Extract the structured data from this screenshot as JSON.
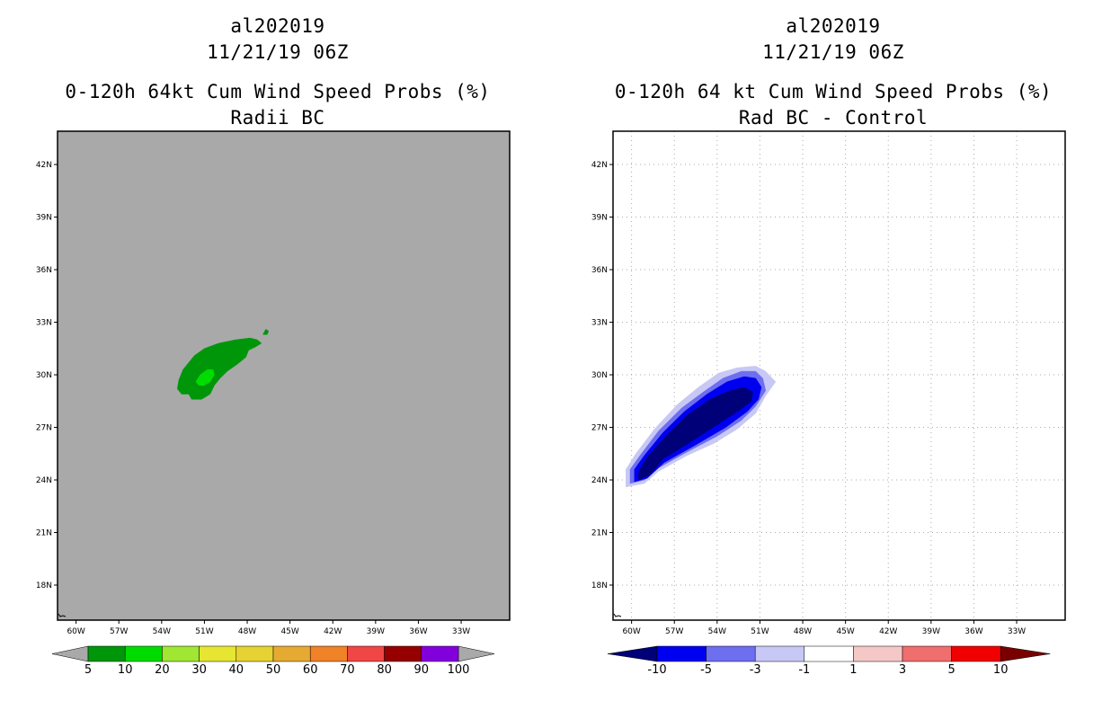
{
  "chart_data": [
    {
      "type": "heatmap",
      "storm_id": "al202019",
      "datetime": "11/21/19 06Z",
      "title": "0-120h 64kt Cum Wind Speed Probs (%)",
      "subtitle": "Radii BC",
      "background": "#a9a9a9",
      "gridlines": false,
      "x_ticks": [
        "60W",
        "57W",
        "54W",
        "51W",
        "48W",
        "45W",
        "42W",
        "39W",
        "36W",
        "33W"
      ],
      "y_ticks": [
        "42N",
        "39N",
        "36N",
        "33N",
        "30N",
        "27N",
        "24N",
        "21N",
        "18N"
      ],
      "xlim": [
        -61.3,
        -29.6
      ],
      "ylim": [
        16.0,
        43.9
      ],
      "colorbar": {
        "labels": [
          "5",
          "10",
          "20",
          "30",
          "40",
          "50",
          "60",
          "70",
          "80",
          "90",
          "100"
        ],
        "colors": [
          "#00960a",
          "#00dc00",
          "#a0e632",
          "#e6e632",
          "#e6d232",
          "#e6aa32",
          "#f08228",
          "#f04646",
          "#960000",
          "#8200dc"
        ],
        "end_colors": [
          "#a9a9a9",
          "#a9a9a9"
        ]
      },
      "contours": [
        {
          "level": "5-10",
          "color": "#00960a",
          "polygon": [
            [
              -52.9,
              29.2
            ],
            [
              -52.8,
              29.7
            ],
            [
              -52.5,
              30.3
            ],
            [
              -52.1,
              30.7
            ],
            [
              -51.7,
              31.1
            ],
            [
              -51.0,
              31.5
            ],
            [
              -50.0,
              31.8
            ],
            [
              -48.8,
              32.0
            ],
            [
              -47.8,
              32.1
            ],
            [
              -47.3,
              32.0
            ],
            [
              -47.0,
              31.8
            ],
            [
              -47.4,
              31.6
            ],
            [
              -47.9,
              31.4
            ],
            [
              -48.1,
              31.0
            ],
            [
              -48.7,
              30.6
            ],
            [
              -49.4,
              30.2
            ],
            [
              -49.9,
              29.8
            ],
            [
              -50.3,
              29.4
            ],
            [
              -50.6,
              28.9
            ],
            [
              -51.2,
              28.6
            ],
            [
              -51.9,
              28.6
            ],
            [
              -52.1,
              28.9
            ],
            [
              -52.6,
              28.9
            ],
            [
              -52.9,
              29.2
            ]
          ]
        },
        {
          "level": "5-10",
          "color": "#00960a",
          "polygon": [
            [
              -46.7,
              32.6
            ],
            [
              -46.5,
              32.5
            ],
            [
              -46.6,
              32.3
            ],
            [
              -46.9,
              32.3
            ],
            [
              -46.7,
              32.6
            ]
          ]
        },
        {
          "level": "10-20",
          "color": "#00dc00",
          "polygon": [
            [
              -51.6,
              29.6
            ],
            [
              -51.3,
              30.0
            ],
            [
              -50.8,
              30.3
            ],
            [
              -50.4,
              30.3
            ],
            [
              -50.3,
              30.0
            ],
            [
              -50.6,
              29.6
            ],
            [
              -51.0,
              29.4
            ],
            [
              -51.4,
              29.4
            ],
            [
              -51.6,
              29.6
            ]
          ]
        }
      ]
    },
    {
      "type": "heatmap",
      "storm_id": "al202019",
      "datetime": "11/21/19 06Z",
      "title": "0-120h 64 kt Cum Wind Speed Probs (%)",
      "subtitle": "Rad BC - Control",
      "background": "#ffffff",
      "gridlines": true,
      "x_ticks": [
        "60W",
        "57W",
        "54W",
        "51W",
        "48W",
        "45W",
        "42W",
        "39W",
        "36W",
        "33W"
      ],
      "y_ticks": [
        "42N",
        "39N",
        "36N",
        "33N",
        "30N",
        "27N",
        "24N",
        "21N",
        "18N"
      ],
      "xlim": [
        -61.3,
        -29.6
      ],
      "ylim": [
        16.0,
        43.9
      ],
      "colorbar": {
        "labels": [
          "-10",
          "-5",
          "-3",
          "-1",
          "1",
          "3",
          "5",
          "10"
        ],
        "colors": [
          "#0000f0",
          "#6e6ef0",
          "#c8c8f5",
          "#ffffff",
          "#f5c8c8",
          "#f06e6e",
          "#f00000"
        ],
        "end_colors": [
          "#000078",
          "#780000"
        ]
      },
      "contours": [
        {
          "level": "-1 to -3",
          "color": "#c8c8f5",
          "polygon": [
            [
              -60.4,
              23.6
            ],
            [
              -60.4,
              24.6
            ],
            [
              -59.7,
              25.5
            ],
            [
              -58.4,
              26.9
            ],
            [
              -56.8,
              28.3
            ],
            [
              -55.3,
              29.3
            ],
            [
              -53.9,
              30.1
            ],
            [
              -52.6,
              30.4
            ],
            [
              -51.3,
              30.5
            ],
            [
              -50.6,
              30.2
            ],
            [
              -49.9,
              29.6
            ],
            [
              -50.6,
              28.8
            ],
            [
              -51.3,
              27.8
            ],
            [
              -52.6,
              26.9
            ],
            [
              -54.2,
              26.1
            ],
            [
              -56.1,
              25.4
            ],
            [
              -58.1,
              24.5
            ],
            [
              -59.1,
              23.8
            ],
            [
              -60.4,
              23.6
            ]
          ]
        },
        {
          "level": "-3 to -5",
          "color": "#6e6ef0",
          "polygon": [
            [
              -60.1,
              23.8
            ],
            [
              -60.1,
              24.6
            ],
            [
              -59.4,
              25.4
            ],
            [
              -58.1,
              26.8
            ],
            [
              -56.5,
              28.1
            ],
            [
              -55.0,
              29.0
            ],
            [
              -53.6,
              29.8
            ],
            [
              -52.3,
              30.2
            ],
            [
              -51.3,
              30.2
            ],
            [
              -50.8,
              29.8
            ],
            [
              -50.6,
              29.1
            ],
            [
              -51.3,
              28.2
            ],
            [
              -52.3,
              27.4
            ],
            [
              -54.0,
              26.5
            ],
            [
              -56.1,
              25.6
            ],
            [
              -58.1,
              24.7
            ],
            [
              -59.1,
              24.0
            ],
            [
              -60.1,
              23.8
            ]
          ]
        },
        {
          "level": "-5 to -10",
          "color": "#0000f0",
          "polygon": [
            [
              -59.8,
              23.9
            ],
            [
              -59.8,
              24.6
            ],
            [
              -59.1,
              25.4
            ],
            [
              -57.8,
              26.7
            ],
            [
              -56.3,
              27.9
            ],
            [
              -54.7,
              28.9
            ],
            [
              -53.3,
              29.6
            ],
            [
              -52.1,
              29.9
            ],
            [
              -51.3,
              29.8
            ],
            [
              -50.9,
              29.3
            ],
            [
              -51.1,
              28.6
            ],
            [
              -51.9,
              27.9
            ],
            [
              -53.4,
              27.0
            ],
            [
              -55.5,
              26.0
            ],
            [
              -57.7,
              25.0
            ],
            [
              -58.9,
              24.1
            ],
            [
              -59.8,
              23.9
            ]
          ]
        },
        {
          "level": "< -10",
          "color": "#000078",
          "polygon": [
            [
              -59.5,
              24.0
            ],
            [
              -59.5,
              24.5
            ],
            [
              -58.9,
              25.3
            ],
            [
              -57.6,
              26.5
            ],
            [
              -56.1,
              27.7
            ],
            [
              -54.5,
              28.6
            ],
            [
              -53.1,
              29.1
            ],
            [
              -52.1,
              29.3
            ],
            [
              -51.5,
              29.0
            ],
            [
              -51.6,
              28.5
            ],
            [
              -52.4,
              28.0
            ],
            [
              -53.9,
              27.2
            ],
            [
              -55.8,
              26.2
            ],
            [
              -57.8,
              25.2
            ],
            [
              -58.7,
              24.3
            ],
            [
              -59.5,
              24.0
            ]
          ]
        }
      ]
    }
  ]
}
